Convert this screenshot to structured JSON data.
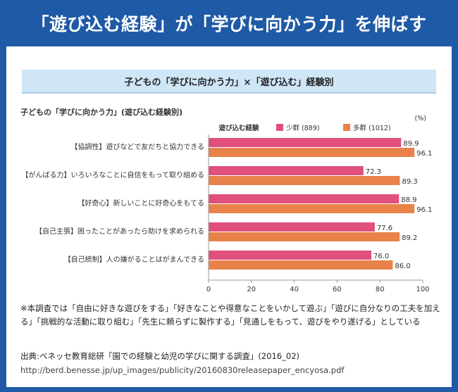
{
  "banner": {
    "title": "「遊び込む経験」が「学びに向かう力」を伸ばす"
  },
  "subheader": {
    "title": "子どもの「学びに向かう力」×「遊び込む」経験別"
  },
  "colors": {
    "banner_bg": "#1f5aa6",
    "low": "#e0507a",
    "high": "#e8824a",
    "subheader_bg": "#cfe6f6"
  },
  "chart_data": {
    "type": "bar",
    "orientation": "horizontal",
    "title": "子どもの「学びに向かう力」(遊び込む経験別)",
    "legend_title": "遊び込む経験",
    "unit_label": "(%)",
    "categories": [
      "【協調性】遊びなどで友だちと協力できる",
      "【がんばる力】いろいろなことに自信をもって取り組める",
      "【好奇心】新しいことに好奇心をもてる",
      "【自己主張】困ったことがあったら助けを求められる",
      "【自己統制】人の嫌がることはがまんできる"
    ],
    "series": [
      {
        "name": "少群 (889)",
        "color": "#e0507a",
        "values": [
          89.9,
          72.3,
          88.9,
          77.6,
          76.0
        ],
        "labels": [
          "89.9",
          "72.3",
          "88.9",
          "77.6",
          "76.0"
        ]
      },
      {
        "name": "多群 (1012)",
        "color": "#e8824a",
        "values": [
          96.1,
          89.3,
          96.1,
          89.2,
          86.0
        ],
        "labels": [
          "96.1",
          "89.3",
          "96.1",
          "89.2",
          "86.0"
        ]
      }
    ],
    "xlim": [
      0,
      100
    ],
    "xticks": [
      0,
      20,
      40,
      60,
      80,
      100
    ],
    "grid": false,
    "legend_position": "top"
  },
  "note": {
    "text": "※本調査では「自由に好きな遊びをする」「好きなことや得意なことをいかして遊ぶ」「遊びに自分なりの工夫を加える」「挑戦的な活動に取り組む」「先生に頼らずに製作する」「見通しをもって、遊びをやり遂げる」としている"
  },
  "source": {
    "label": "出典:ベネッセ教育総研「園での経験と幼児の学びに関する調査」(2016_02)",
    "url": "http://berd.benesse.jp/up_images/publicity/20160830releasepaper_encyosa.pdf"
  }
}
